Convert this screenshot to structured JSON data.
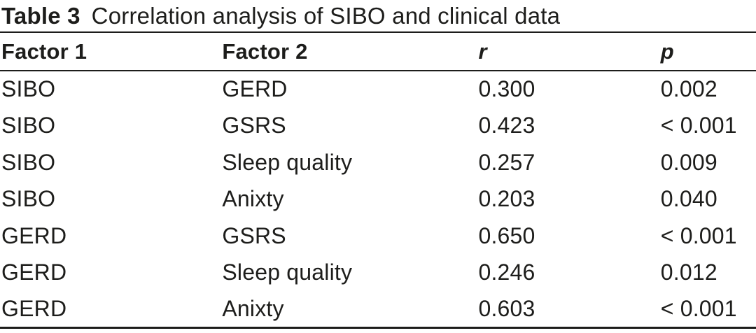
{
  "table": {
    "label": "Table 3",
    "caption": "Correlation analysis of SIBO and clinical data",
    "columns": [
      "Factor 1",
      "Factor 2",
      "r",
      "p"
    ],
    "rows": [
      [
        "SIBO",
        "GERD",
        "0.300",
        "0.002"
      ],
      [
        "SIBO",
        "GSRS",
        "0.423",
        "< 0.001"
      ],
      [
        "SIBO",
        "Sleep quality",
        "0.257",
        "0.009"
      ],
      [
        "SIBO",
        "Anixty",
        "0.203",
        "0.040"
      ],
      [
        "GERD",
        "GSRS",
        "0.650",
        "< 0.001"
      ],
      [
        "GERD",
        "Sleep quality",
        "0.246",
        "0.012"
      ],
      [
        "GERD",
        "Anixty",
        "0.603",
        "< 0.001"
      ]
    ],
    "colors": {
      "text": "#1d1d1b",
      "rule": "#1d1d1b",
      "background": "#ffffff"
    }
  },
  "chart_data": {
    "type": "table",
    "title": "Table 3 Correlation analysis of SIBO and clinical data",
    "columns": [
      "Factor 1",
      "Factor 2",
      "r",
      "p"
    ],
    "rows": [
      {
        "factor1": "SIBO",
        "factor2": "GERD",
        "r": 0.3,
        "p": "0.002"
      },
      {
        "factor1": "SIBO",
        "factor2": "GSRS",
        "r": 0.423,
        "p": "< 0.001"
      },
      {
        "factor1": "SIBO",
        "factor2": "Sleep quality",
        "r": 0.257,
        "p": "0.009"
      },
      {
        "factor1": "SIBO",
        "factor2": "Anixty",
        "r": 0.203,
        "p": "0.040"
      },
      {
        "factor1": "GERD",
        "factor2": "GSRS",
        "r": 0.65,
        "p": "< 0.001"
      },
      {
        "factor1": "GERD",
        "factor2": "Sleep quality",
        "r": 0.246,
        "p": "0.012"
      },
      {
        "factor1": "GERD",
        "factor2": "Anixty",
        "r": 0.603,
        "p": "< 0.001"
      }
    ]
  }
}
